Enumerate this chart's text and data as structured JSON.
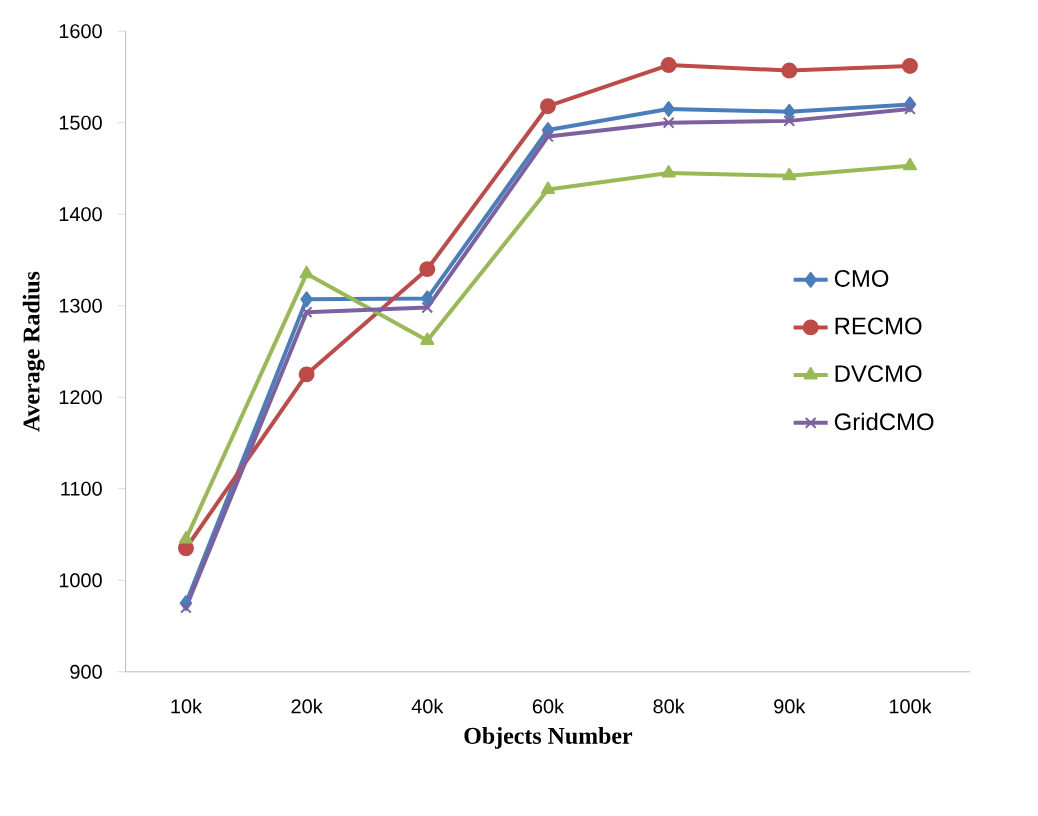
{
  "chart_data": {
    "type": "line",
    "xlabel": "Objects Number",
    "ylabel": "Average Radius",
    "categories": [
      "10k",
      "20k",
      "40k",
      "60k",
      "80k",
      "90k",
      "100k"
    ],
    "series": [
      {
        "name": "CMO",
        "color": "#4a7ebb",
        "marker": "diamond",
        "values": [
          975,
          1307,
          1308,
          1492,
          1515,
          1512,
          1520
        ]
      },
      {
        "name": "RECMO",
        "color": "#be4b48",
        "marker": "circle",
        "values": [
          1035,
          1225,
          1340,
          1518,
          1563,
          1557,
          1562
        ]
      },
      {
        "name": "DVCMO",
        "color": "#98b954",
        "marker": "triangle",
        "values": [
          1045,
          1335,
          1262,
          1427,
          1445,
          1442,
          1453
        ]
      },
      {
        "name": "GridCMO",
        "color": "#7d60a0",
        "marker": "cross",
        "values": [
          970,
          1293,
          1298,
          1485,
          1500,
          1502,
          1515
        ]
      }
    ],
    "ylim": [
      900,
      1600
    ],
    "yticks": [
      900,
      1000,
      1100,
      1200,
      1300,
      1400,
      1500,
      1600
    ],
    "grid": false,
    "legend": "right",
    "line_style": "solid"
  }
}
